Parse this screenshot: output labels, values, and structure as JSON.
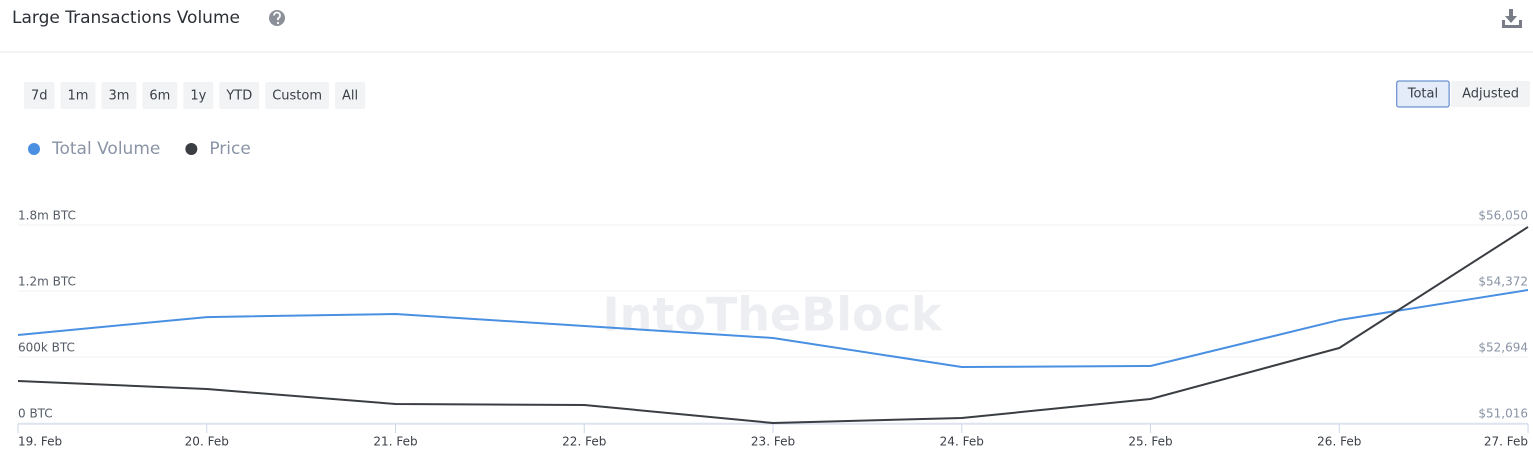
{
  "header": {
    "title": "Large Transactions Volume"
  },
  "range_buttons": [
    "7d",
    "1m",
    "3m",
    "6m",
    "1y",
    "YTD",
    "Custom",
    "All"
  ],
  "mode_buttons": [
    "Total",
    "Adjusted"
  ],
  "active_mode": 0,
  "chart_data": {
    "type": "line",
    "watermark": "IntoTheBlock",
    "categories": [
      "19. Feb",
      "20. Feb",
      "21. Feb",
      "22. Feb",
      "23. Feb",
      "24. Feb",
      "25. Feb",
      "26. Feb",
      "27. Feb"
    ],
    "series": [
      {
        "name": "Total Volume",
        "color": "#4a90e2",
        "values": [
          800000,
          963000,
          991000,
          882000,
          773000,
          509000,
          518000,
          936000,
          1209000
        ]
      },
      {
        "name": "Price",
        "color": "#3a3d42",
        "axis": "y2",
        "values": [
          52084,
          51880,
          51499,
          51474,
          51016,
          51143,
          51626,
          52923,
          56000
        ]
      }
    ],
    "ylim": [
      0,
      1800000
    ],
    "yticks": [
      {
        "value": 0,
        "label": "0 BTC"
      },
      {
        "value": 600000,
        "label": "600k BTC"
      },
      {
        "value": 1200000,
        "label": "1.2m BTC"
      },
      {
        "value": 1800000,
        "label": "1.8m BTC"
      }
    ],
    "y2lim": [
      51016,
      56050
    ],
    "y2ticks": [
      {
        "value": 51016,
        "label": "$51,016"
      },
      {
        "value": 52694,
        "label": "$52,694"
      },
      {
        "value": 54372,
        "label": "$54,372"
      },
      {
        "value": 56050,
        "label": "$56,050"
      }
    ],
    "grid": true
  }
}
